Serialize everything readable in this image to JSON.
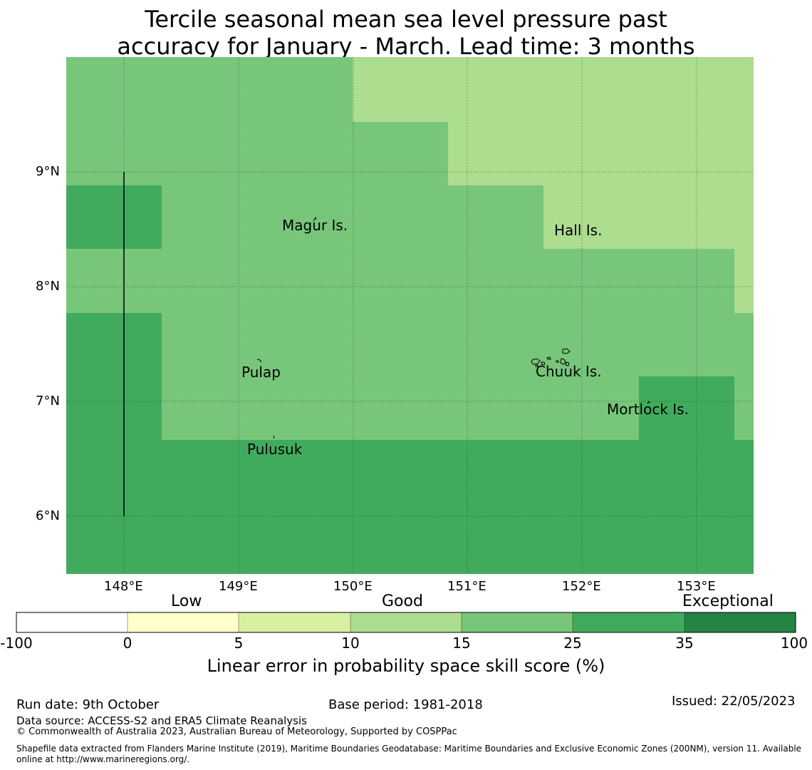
{
  "title": {
    "line1": "Tercile seasonal mean sea level pressure past",
    "line2": "accuracy for January - March. Lead time: 3 months"
  },
  "map": {
    "lat_labels": [
      "9°N",
      "8°N",
      "7°N",
      "6°N"
    ],
    "lon_labels": [
      "148°E",
      "149°E",
      "150°E",
      "151°E",
      "152°E",
      "153°E"
    ],
    "islands": {
      "magur": "Magur Is.",
      "hall": "Hall Is.",
      "pulap": "Pulap",
      "chuuk": "Chuuk Is.",
      "mortlock": "Mortlock Is.",
      "pulusuk": "Pulusuk"
    }
  },
  "colorbar": {
    "category_low": "Low",
    "category_good": "Good",
    "category_exceptional": "Exceptional",
    "ticks": [
      "-100",
      "0",
      "5",
      "10",
      "15",
      "25",
      "35",
      "100"
    ],
    "colors": [
      "#ffffff",
      "#ffffcc",
      "#d9f0a3",
      "#addd8e",
      "#78c679",
      "#41ab5d",
      "#238443"
    ],
    "label": "Linear error in probability space skill score (%)"
  },
  "footer": {
    "run_date": "Run date: 9th October",
    "base_period": "Base period: 1981-2018",
    "issued": "Issued: 22/05/2023",
    "data_source": "Data source: ACCESS-S2 and ERA5 Climate Reanalysis",
    "copyright": "© Commonwealth of Australia 2023, Australian Bureau of Meteorology, Supported by COSPPac",
    "shapefile_line1": "Shapefile data extracted from Flanders Marine Institute (2019), Maritime Boundaries Geodatabase: Maritime Boundaries and Exclusive Economic Zones (200NM), version 11. Available",
    "shapefile_line2": "online at http://www.marineregions.org/."
  }
}
